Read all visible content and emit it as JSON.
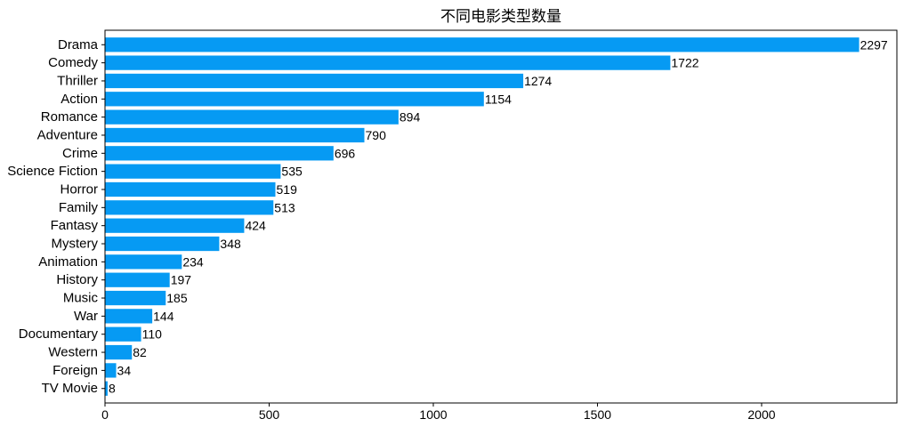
{
  "chart_data": {
    "type": "bar",
    "orientation": "horizontal",
    "title": "不同电影类型数量",
    "xlabel": "",
    "ylabel": "",
    "categories": [
      "Drama",
      "Comedy",
      "Thriller",
      "Action",
      "Romance",
      "Adventure",
      "Crime",
      "Science Fiction",
      "Horror",
      "Family",
      "Fantasy",
      "Mystery",
      "Animation",
      "History",
      "Music",
      "War",
      "Documentary",
      "Western",
      "Foreign",
      "TV Movie"
    ],
    "values": [
      2297,
      1722,
      1274,
      1154,
      894,
      790,
      696,
      535,
      519,
      513,
      424,
      348,
      234,
      197,
      185,
      144,
      110,
      82,
      34,
      8
    ],
    "xlim": [
      0,
      2412
    ],
    "xticks": [
      0,
      500,
      1000,
      1500,
      2000
    ],
    "grid": false,
    "bar_color": "#069af3"
  }
}
